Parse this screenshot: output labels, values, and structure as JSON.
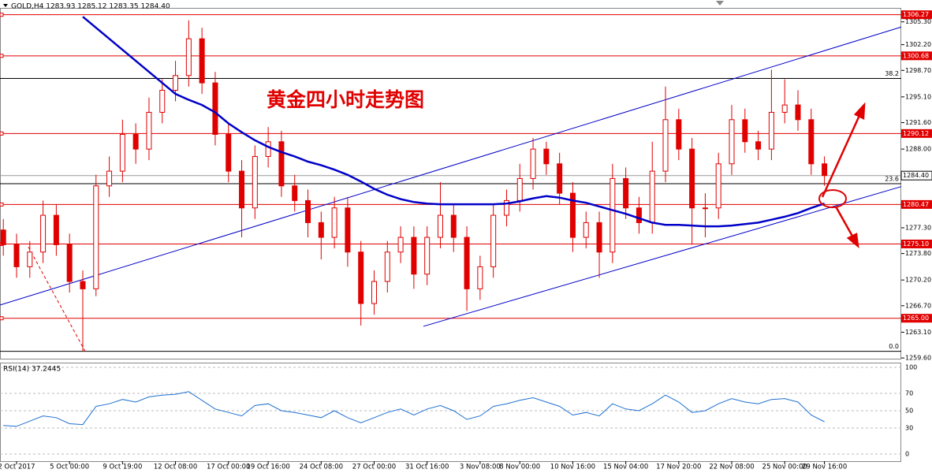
{
  "chart_data": [
    {
      "type": "candlestick",
      "header": "GOLD,H4  1283.93 1285.12 1283.35 1284.40",
      "annotation": "黄金四小时走势图",
      "categories": [
        null,
        "2 Oct 2017",
        null,
        null,
        null,
        "5 Oct 00:00",
        null,
        null,
        null,
        "9 Oct 19:00",
        null,
        null,
        null,
        "12 Oct 08:00",
        null,
        null,
        null,
        "17 Oct 00:00",
        null,
        null,
        "19 Oct 16:00",
        null,
        null,
        null,
        "24 Oct 08:00",
        null,
        null,
        null,
        "27 Oct 00:00",
        null,
        null,
        null,
        "31 Oct 16:00",
        null,
        null,
        null,
        "3 Nov 08:00",
        null,
        null,
        "8 Nov 00:00",
        null,
        null,
        null,
        "10 Nov 16:00",
        null,
        null,
        null,
        "15 Nov 04:00",
        null,
        null,
        null,
        "17 Nov 20:00",
        null,
        null,
        null,
        "22 Nov 08:00",
        null,
        null,
        null,
        "25 Nov 00:00",
        null,
        null,
        "29 Nov 16:00"
      ],
      "open": [
        1277,
        1275,
        1272,
        1274,
        1279,
        1275,
        1270,
        1269,
        1283,
        1285,
        1290,
        1288,
        1293,
        1296,
        1298,
        1303,
        1297,
        1290,
        1285,
        1280,
        1287,
        1289,
        1283,
        1281,
        1278,
        1276,
        1280,
        1274,
        1267,
        1270,
        1274,
        1276,
        1271,
        1276,
        1279,
        1276,
        1269,
        1272,
        1279,
        1281,
        1284,
        1288,
        1286,
        1282,
        1276,
        1278,
        1274,
        1284,
        1280,
        1278,
        1285,
        1292,
        1288,
        1280,
        1280,
        1286,
        1292,
        1289,
        1288,
        1293,
        1294,
        1292,
        1286
      ],
      "high": [
        1278.5,
        1276.5,
        1275.5,
        1281,
        1280.5,
        1276.5,
        1271.5,
        1284.5,
        1287,
        1292,
        1291.5,
        1295,
        1297.5,
        1300,
        1305.5,
        1304.5,
        1298.5,
        1291.5,
        1286.5,
        1288.5,
        1291,
        1290.5,
        1284.5,
        1282.5,
        1279.5,
        1281.5,
        1281.5,
        1275.5,
        1271.5,
        1275.5,
        1277.5,
        1277.5,
        1277.5,
        1283.5,
        1280.5,
        1277.5,
        1273.5,
        1280.5,
        1282.5,
        1286,
        1289.5,
        1289,
        1287.5,
        1283.5,
        1279.5,
        1279.5,
        1286,
        1285.5,
        1281.5,
        1289,
        1296.5,
        1293.5,
        1289.5,
        1282,
        1287.5,
        1294,
        1293.5,
        1290.5,
        1298.8,
        1297.5,
        1296,
        1293.5,
        1287
      ],
      "low": [
        1273.5,
        1270.5,
        1270.5,
        1272.5,
        1273.5,
        1268.5,
        1260.5,
        1268,
        1281.5,
        1283.5,
        1286,
        1286.5,
        1291.5,
        1294.5,
        1296.5,
        1295.5,
        1288.5,
        1283.5,
        1276,
        1278.5,
        1285.5,
        1281.5,
        1279.5,
        1276,
        1273,
        1274.5,
        1272,
        1264,
        1265.5,
        1268.5,
        1272.5,
        1269,
        1269.5,
        1274.5,
        1274,
        1266,
        1267.5,
        1270.5,
        1277.5,
        1279.5,
        1282.5,
        1284.5,
        1280.5,
        1274,
        1274.5,
        1270.5,
        1272.5,
        1278.5,
        1276.5,
        1276.5,
        1283.5,
        1286.5,
        1275,
        1276,
        1278.5,
        1284.5,
        1287.5,
        1286.5,
        1286.5,
        1291.5,
        1290.5,
        1284.5,
        1283
      ],
      "close": [
        1275,
        1272,
        1274,
        1279,
        1275,
        1270,
        1269,
        1283,
        1285,
        1290,
        1288,
        1293,
        1296,
        1298,
        1303,
        1297,
        1290,
        1285,
        1280,
        1287,
        1289,
        1283,
        1281,
        1278,
        1276,
        1280,
        1274,
        1267,
        1270,
        1274,
        1276,
        1271,
        1276,
        1279,
        1276,
        1269,
        1272,
        1279,
        1281,
        1284,
        1288,
        1286,
        1282,
        1276,
        1278,
        1274,
        1284,
        1280,
        1278,
        1285,
        1292,
        1288,
        1280,
        1280,
        1286,
        1292,
        1289,
        1288,
        1293,
        1294,
        1292,
        1286,
        1284.4
      ],
      "color": "#e00000",
      "series": [
        {
          "color": "#0000c8",
          "values": [
            null,
            null,
            null,
            null,
            null,
            null,
            1306,
            1304.5,
            1303,
            1301.5,
            1300,
            1298.5,
            1297,
            1295.5,
            1294.7,
            1294,
            1293,
            1291.5,
            1290.3,
            1289.2,
            1288.3,
            1287.6,
            1287,
            1286.3,
            1285.8,
            1285.2,
            1284.5,
            1283.6,
            1282.6,
            1281.8,
            1281.2,
            1280.8,
            1280.6,
            1280.5,
            1280.5,
            1280.5,
            1280.5,
            1280.5,
            1280.6,
            1280.9,
            1281.3,
            1281.6,
            1281.4,
            1281,
            1280.7,
            1280.2,
            1279.7,
            1279.2,
            1278.6,
            1278,
            1277.7,
            1277.7,
            1277.6,
            1277.5,
            1277.5,
            1277.6,
            1277.8,
            1278,
            1278.4,
            1278.8,
            1279.3,
            1280,
            1280.6
          ]
        }
      ],
      "xlim": [
        -0.25,
        67.8
      ],
      "ylim": [
        1259.5,
        1307.2
      ],
      "yticks": [
        {
          "value": 1305.3,
          "label": "1305.30"
        },
        {
          "value": 1302.2,
          "label": "1302.20"
        },
        {
          "value": 1298.7,
          "label": "1298.70"
        },
        {
          "value": 1295.1,
          "label": "1295.10"
        },
        {
          "value": 1291.6,
          "label": "1291.60"
        },
        {
          "value": 1288,
          "label": "1288.00"
        },
        {
          "value": 1277.3,
          "label": "1277.30"
        },
        {
          "value": 1273.8,
          "label": "1273.80"
        },
        {
          "value": 1270.2,
          "label": "1270.20"
        },
        {
          "value": 1266.7,
          "label": "1266.70"
        },
        {
          "value": 1263.1,
          "label": "1263.10"
        },
        {
          "value": 1259.6,
          "label": "1259.60"
        }
      ],
      "levels": [
        1306.27,
        1300.68,
        1290.12,
        1280.47,
        {
          "value": 1275.1,
          "label": "1275.10"
        },
        {
          "value": 1265,
          "label": "1265.00"
        }
      ],
      "level_color": "#e00000",
      "last_price": {
        "value": 1284.4,
        "label": "1284.40"
      },
      "fib_levels": [
        {
          "label": "38.2",
          "value": 1297.6
        },
        {
          "label": "23.6",
          "value": 1283.3
        },
        {
          "label": "0.0",
          "value": 1260.5
        }
      ],
      "trend_lines": [
        {
          "x": [
            -0.24,
            67.8
          ],
          "y": [
            1266.8,
            1304.6
          ],
          "color": "#0000c8"
        },
        {
          "x": [
            31.72,
            67.8
          ],
          "y": [
            1263.9,
            1282.9
          ],
          "color": "#0000c8"
        },
        {
          "x": [
            1.89,
            6.18
          ],
          "y": [
            1274.7,
            1260.5
          ],
          "color": "#e00000",
          "dashed": true
        }
      ]
    },
    {
      "type": "line",
      "title": "RSI(14) 37.2445",
      "color": "#1e6fd0",
      "values": [
        33,
        32,
        38,
        44,
        42,
        35,
        34,
        55,
        58,
        63,
        60,
        66,
        68,
        69,
        72,
        62,
        52,
        48,
        44,
        56,
        58,
        50,
        48,
        45,
        42,
        50,
        42,
        36,
        42,
        48,
        52,
        45,
        52,
        56,
        50,
        40,
        44,
        55,
        58,
        62,
        65,
        60,
        55,
        45,
        48,
        44,
        58,
        52,
        50,
        58,
        68,
        60,
        48,
        50,
        58,
        64,
        60,
        58,
        63,
        64,
        60,
        45,
        37.2445
      ],
      "ylim": [
        0,
        100
      ],
      "yticks": [
        0,
        30,
        50,
        70,
        100
      ]
    }
  ]
}
